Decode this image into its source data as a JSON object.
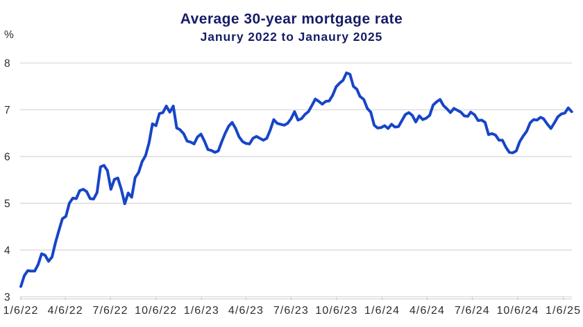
{
  "chart": {
    "title": "Average 30-year mortgage rate",
    "subtitle": "Janury 2022 to Janaury 2025",
    "y_axis": {
      "unit": "%",
      "ticks": [
        3,
        4,
        5,
        6,
        7,
        8
      ],
      "range": [
        3,
        8
      ]
    },
    "x_axis": {
      "tick_labels": [
        "1/6/22",
        "4/6/22",
        "7/6/22",
        "10/6/22",
        "1/6/23",
        "4/6/23",
        "7/6/23",
        "10/6/23",
        "1/6/24",
        "4/6/24",
        "7/6/24",
        "10/6/24",
        "1/6/25"
      ],
      "tick_dates": [
        "2022-01-06",
        "2022-04-06",
        "2022-07-06",
        "2022-10-06",
        "2023-01-06",
        "2023-04-06",
        "2023-07-06",
        "2023-10-06",
        "2024-01-06",
        "2024-04-06",
        "2024-07-06",
        "2024-10-06",
        "2025-01-06"
      ]
    },
    "colors": {
      "line": "#1745c8",
      "title": "#161c66",
      "grid": "#d9d9d9",
      "axis": "#c7ccd1",
      "tick": "#c2c7cc",
      "text": "#2d2d2d"
    },
    "legend": "none",
    "grid": "horizontal"
  },
  "chart_data": {
    "type": "line",
    "title": "Average 30-year mortgage rate",
    "subtitle": "Janury 2022 to Janaury 2025",
    "xlabel": "",
    "ylabel": "%",
    "ylim": [
      3,
      8
    ],
    "series_name": "Average 30-year mortgage rate (%)",
    "x": [
      "2022-01-06",
      "2022-01-13",
      "2022-01-20",
      "2022-01-27",
      "2022-02-03",
      "2022-02-10",
      "2022-02-17",
      "2022-02-24",
      "2022-03-03",
      "2022-03-10",
      "2022-03-17",
      "2022-03-24",
      "2022-03-31",
      "2022-04-07",
      "2022-04-14",
      "2022-04-21",
      "2022-04-28",
      "2022-05-05",
      "2022-05-12",
      "2022-05-19",
      "2022-05-26",
      "2022-06-02",
      "2022-06-09",
      "2022-06-16",
      "2022-06-23",
      "2022-06-30",
      "2022-07-07",
      "2022-07-14",
      "2022-07-21",
      "2022-07-28",
      "2022-08-04",
      "2022-08-11",
      "2022-08-18",
      "2022-08-25",
      "2022-09-01",
      "2022-09-08",
      "2022-09-15",
      "2022-09-22",
      "2022-09-29",
      "2022-10-06",
      "2022-10-13",
      "2022-10-20",
      "2022-10-27",
      "2022-11-03",
      "2022-11-10",
      "2022-11-17",
      "2022-11-23",
      "2022-12-01",
      "2022-12-08",
      "2022-12-15",
      "2022-12-22",
      "2022-12-29",
      "2023-01-05",
      "2023-01-12",
      "2023-01-19",
      "2023-01-26",
      "2023-02-02",
      "2023-02-09",
      "2023-02-16",
      "2023-02-23",
      "2023-03-02",
      "2023-03-09",
      "2023-03-16",
      "2023-03-23",
      "2023-03-30",
      "2023-04-06",
      "2023-04-13",
      "2023-04-20",
      "2023-04-27",
      "2023-05-04",
      "2023-05-11",
      "2023-05-18",
      "2023-05-25",
      "2023-06-01",
      "2023-06-08",
      "2023-06-15",
      "2023-06-22",
      "2023-06-29",
      "2023-07-06",
      "2023-07-13",
      "2023-07-20",
      "2023-07-27",
      "2023-08-03",
      "2023-08-10",
      "2023-08-17",
      "2023-08-24",
      "2023-08-31",
      "2023-09-07",
      "2023-09-14",
      "2023-09-21",
      "2023-09-28",
      "2023-10-05",
      "2023-10-12",
      "2023-10-19",
      "2023-10-26",
      "2023-11-02",
      "2023-11-09",
      "2023-11-16",
      "2023-11-22",
      "2023-11-30",
      "2023-12-07",
      "2023-12-14",
      "2023-12-21",
      "2023-12-28",
      "2024-01-04",
      "2024-01-11",
      "2024-01-18",
      "2024-01-25",
      "2024-02-01",
      "2024-02-08",
      "2024-02-15",
      "2024-02-22",
      "2024-02-29",
      "2024-03-07",
      "2024-03-14",
      "2024-03-21",
      "2024-03-28",
      "2024-04-04",
      "2024-04-11",
      "2024-04-18",
      "2024-04-25",
      "2024-05-02",
      "2024-05-09",
      "2024-05-16",
      "2024-05-23",
      "2024-05-30",
      "2024-06-06",
      "2024-06-13",
      "2024-06-20",
      "2024-06-27",
      "2024-07-03",
      "2024-07-11",
      "2024-07-18",
      "2024-07-25",
      "2024-08-01",
      "2024-08-08",
      "2024-08-15",
      "2024-08-22",
      "2024-08-29",
      "2024-09-05",
      "2024-09-12",
      "2024-09-19",
      "2024-09-26",
      "2024-10-03",
      "2024-10-10",
      "2024-10-17",
      "2024-10-24",
      "2024-10-31",
      "2024-11-07",
      "2024-11-14",
      "2024-11-21",
      "2024-11-27",
      "2024-12-05",
      "2024-12-12",
      "2024-12-19",
      "2024-12-26",
      "2025-01-02",
      "2025-01-09",
      "2025-01-16",
      "2025-01-23"
    ],
    "values": [
      3.22,
      3.45,
      3.56,
      3.55,
      3.55,
      3.69,
      3.92,
      3.89,
      3.76,
      3.85,
      4.16,
      4.42,
      4.67,
      4.72,
      5.0,
      5.11,
      5.1,
      5.27,
      5.3,
      5.25,
      5.1,
      5.09,
      5.23,
      5.78,
      5.81,
      5.7,
      5.3,
      5.51,
      5.54,
      5.3,
      4.99,
      5.22,
      5.13,
      5.55,
      5.66,
      5.89,
      6.02,
      6.29,
      6.7,
      6.66,
      6.92,
      6.94,
      7.08,
      6.95,
      7.08,
      6.61,
      6.58,
      6.49,
      6.33,
      6.31,
      6.27,
      6.42,
      6.48,
      6.33,
      6.15,
      6.13,
      6.09,
      6.12,
      6.32,
      6.5,
      6.65,
      6.73,
      6.6,
      6.42,
      6.32,
      6.28,
      6.27,
      6.39,
      6.43,
      6.39,
      6.35,
      6.39,
      6.57,
      6.79,
      6.71,
      6.69,
      6.67,
      6.71,
      6.81,
      6.96,
      6.78,
      6.81,
      6.9,
      6.96,
      7.09,
      7.23,
      7.18,
      7.12,
      7.18,
      7.19,
      7.31,
      7.49,
      7.57,
      7.63,
      7.79,
      7.76,
      7.5,
      7.44,
      7.29,
      7.22,
      7.03,
      6.95,
      6.67,
      6.61,
      6.62,
      6.66,
      6.6,
      6.69,
      6.63,
      6.64,
      6.77,
      6.9,
      6.94,
      6.88,
      6.74,
      6.87,
      6.79,
      6.82,
      6.88,
      7.1,
      7.17,
      7.22,
      7.09,
      7.02,
      6.94,
      7.03,
      6.99,
      6.95,
      6.87,
      6.86,
      6.95,
      6.89,
      6.77,
      6.78,
      6.73,
      6.47,
      6.49,
      6.46,
      6.35,
      6.35,
      6.2,
      6.09,
      6.08,
      6.12,
      6.32,
      6.44,
      6.54,
      6.72,
      6.79,
      6.78,
      6.84,
      6.81,
      6.69,
      6.6,
      6.72,
      6.85,
      6.91,
      6.93,
      7.04,
      6.96
    ],
    "x_tick_labels": [
      "1/6/22",
      "4/6/22",
      "7/6/22",
      "10/6/22",
      "1/6/23",
      "4/6/23",
      "7/6/23",
      "10/6/23",
      "1/6/24",
      "4/6/24",
      "7/6/24",
      "10/6/24",
      "1/6/25"
    ],
    "y_tick_labels": [
      "3",
      "4",
      "5",
      "6",
      "7",
      "8"
    ],
    "legend_position": "none",
    "grid": "horizontal"
  }
}
